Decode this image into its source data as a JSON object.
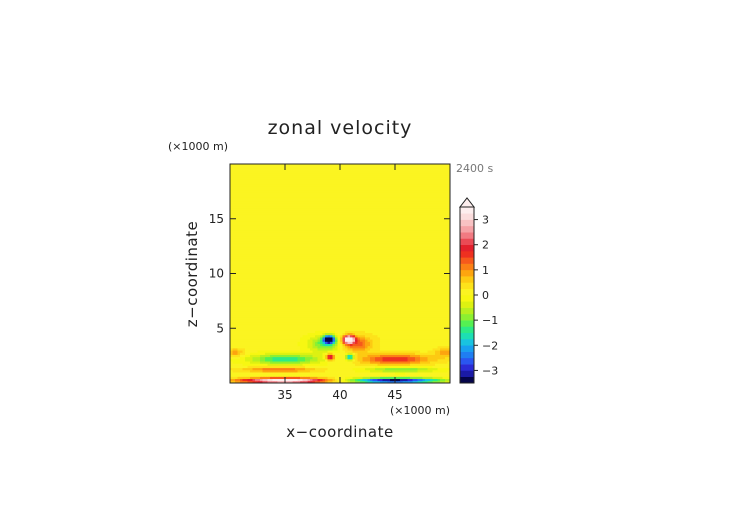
{
  "chart_data": {
    "type": "heatmap",
    "title": "zonal velocity",
    "xlabel": "x−coordinate",
    "ylabel": "z−coordinate",
    "x_unit": "(×1000 m)",
    "y_unit": "(×1000 m)",
    "time_label": "2400 s",
    "xlim": [
      30,
      50
    ],
    "ylim": [
      0,
      20
    ],
    "x_ticks": [
      "35",
      "40",
      "45"
    ],
    "y_ticks": [
      "5",
      "10",
      "15"
    ],
    "colorbar": {
      "levels": [
        -3.5,
        -3.25,
        -3,
        -2.75,
        -2.5,
        -2.25,
        -2,
        -1.75,
        -1.5,
        -1.25,
        -1,
        -0.75,
        -0.5,
        -0.25,
        0,
        0.25,
        0.5,
        0.75,
        1,
        1.25,
        1.5,
        1.75,
        2,
        2.25,
        2.5,
        2.75,
        3,
        3.25,
        3.5
      ],
      "tick_labels": [
        "−3",
        "−2",
        "−1",
        "0",
        "1",
        "2",
        "3"
      ],
      "tick_values": [
        -3,
        -2,
        -1,
        0,
        1,
        2,
        3
      ],
      "extend": "max"
    },
    "grid": false,
    "legend": "colorbar-right"
  }
}
